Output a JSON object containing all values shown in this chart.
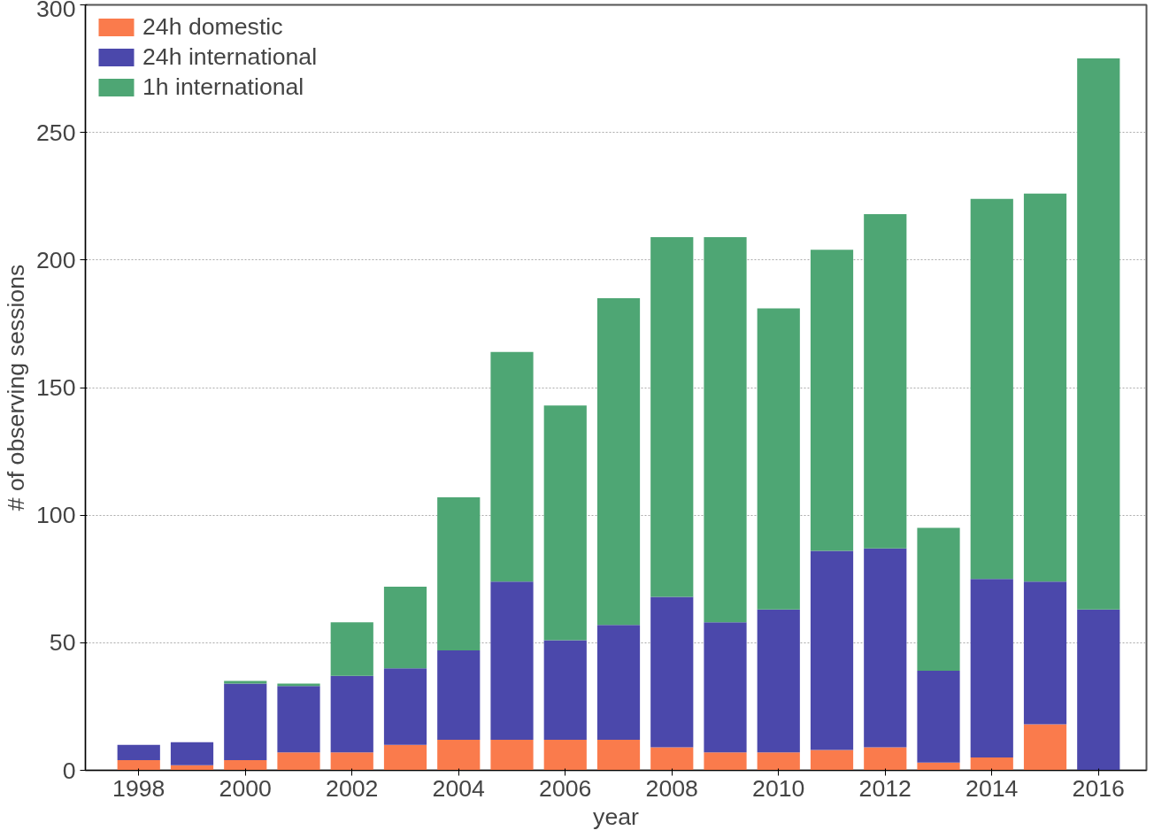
{
  "chart_data": {
    "type": "bar",
    "stacked": true,
    "xlabel": "year",
    "ylabel": "# of observing sessions",
    "x": [
      1998,
      1999,
      2000,
      2001,
      2002,
      2003,
      2004,
      2005,
      2006,
      2007,
      2008,
      2009,
      2010,
      2011,
      2012,
      2013,
      2014,
      2015,
      2016
    ],
    "series": [
      {
        "name": "24h domestic",
        "color": "#fa7b4c",
        "values": [
          4,
          2,
          4,
          7,
          7,
          10,
          12,
          12,
          12,
          12,
          9,
          7,
          7,
          8,
          9,
          3,
          5,
          18,
          0
        ]
      },
      {
        "name": "24h international",
        "color": "#4b48ab",
        "values": [
          6,
          9,
          30,
          26,
          30,
          30,
          35,
          62,
          39,
          45,
          59,
          51,
          56,
          78,
          78,
          36,
          70,
          56,
          63
        ]
      },
      {
        "name": "1h international",
        "color": "#4ea674",
        "values": [
          0,
          0,
          1,
          1,
          21,
          32,
          60,
          90,
          92,
          128,
          141,
          151,
          118,
          118,
          131,
          56,
          149,
          152,
          216
        ]
      }
    ],
    "xlim": [
      1997,
      2016.9
    ],
    "xticks": [
      1998,
      2000,
      2002,
      2004,
      2006,
      2008,
      2010,
      2012,
      2014,
      2016
    ],
    "ylim": [
      0,
      300
    ],
    "yticks": [
      0,
      50,
      100,
      150,
      200,
      250,
      300
    ],
    "grid": "y",
    "legend": "top left"
  }
}
